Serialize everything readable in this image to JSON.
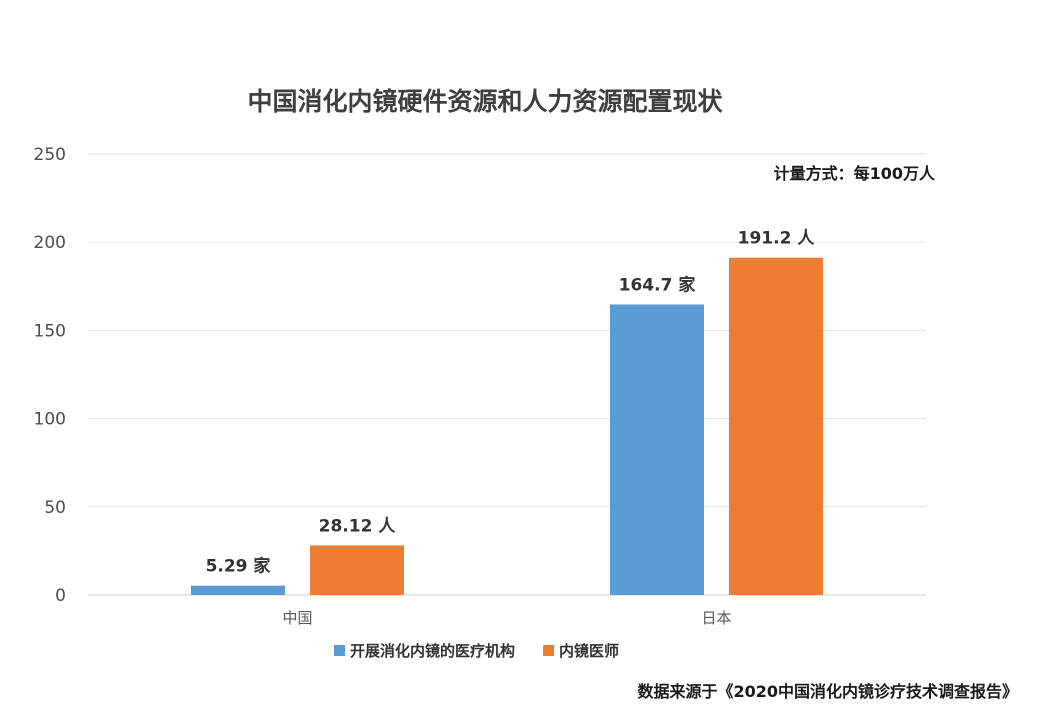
{
  "chart_data": {
    "type": "bar",
    "title": "中国消化内镜硬件资源和人力资源配置现状",
    "unit_note": "计量方式：每100万人",
    "categories": [
      "中国",
      "日本"
    ],
    "ylim": [
      0,
      250
    ],
    "yticks": [
      0,
      50,
      100,
      150,
      200,
      250
    ],
    "grid": true,
    "legend_position": "bottom",
    "series": [
      {
        "name": "开展消化内镜的医疗机构",
        "color": "#5b9bd5",
        "values": [
          5.29,
          164.7
        ],
        "labels": [
          "5.29",
          "164.7"
        ],
        "unit": "家"
      },
      {
        "name": "内镜医师",
        "color": "#ed7d31",
        "values": [
          28.12,
          191.2
        ],
        "labels": [
          "28.12",
          "191.2"
        ],
        "unit": "人"
      }
    ],
    "source": "数据来源于《2020中国消化内镜诊疗技术调查报告》"
  }
}
